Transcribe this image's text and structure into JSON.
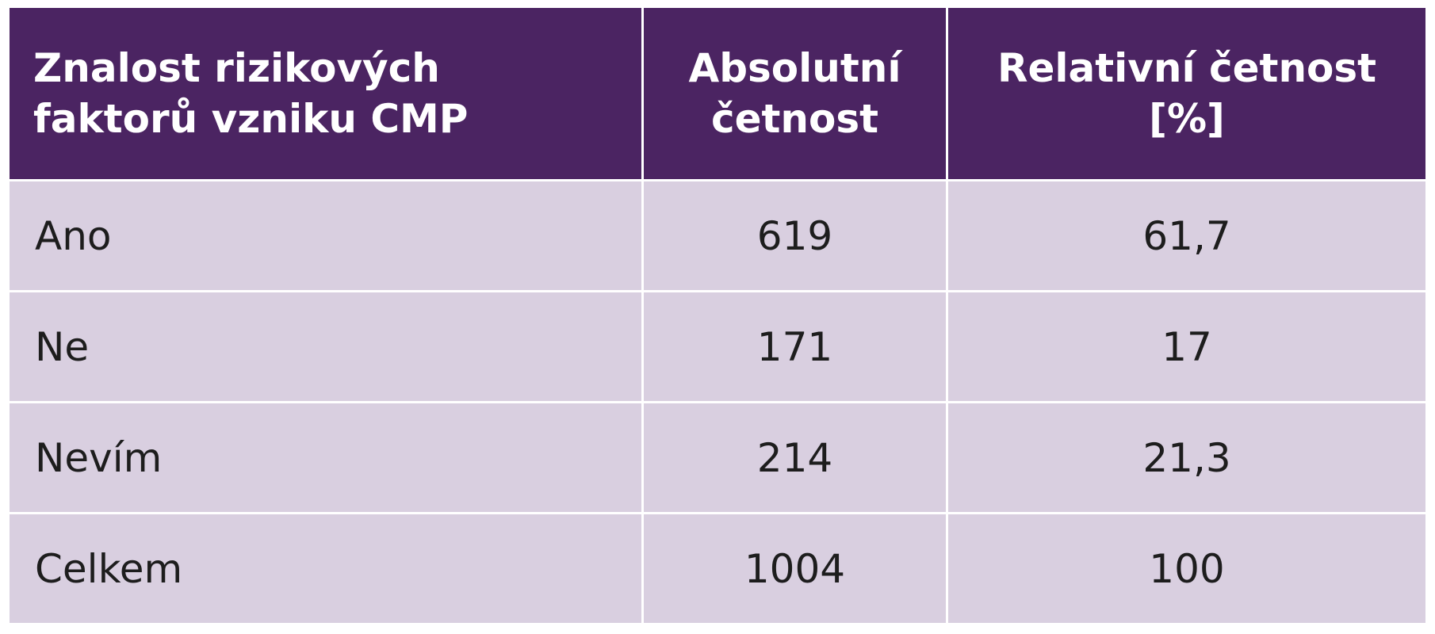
{
  "table": {
    "header": [
      {
        "lines": [
          "Znalost rizikových",
          "faktorů vzniku CMP"
        ]
      },
      {
        "lines": [
          "Absolutní",
          "četnost"
        ]
      },
      {
        "lines": [
          "Relativní četnost",
          "[%]"
        ]
      }
    ],
    "rows": [
      [
        "Ano",
        "619",
        "61,7"
      ],
      [
        "Ne",
        "171",
        "17"
      ],
      [
        "Nevím",
        "214",
        "21,3"
      ],
      [
        "Celkem",
        "1004",
        "100"
      ]
    ]
  }
}
